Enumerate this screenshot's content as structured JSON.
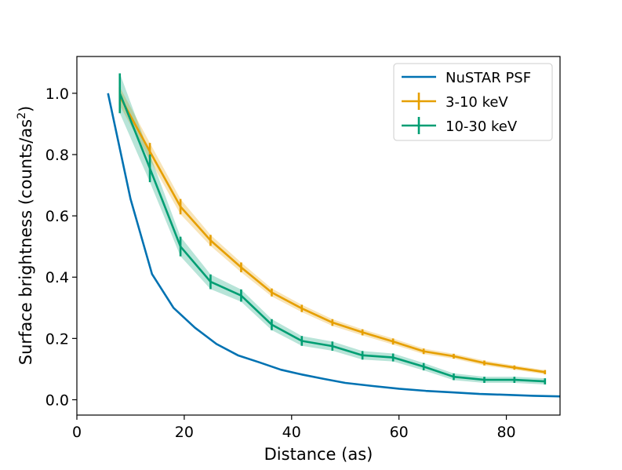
{
  "chart_data": {
    "type": "line",
    "xlabel": "Distance (as)",
    "ylabel_main": "Surface brightness (counts/as",
    "ylabel_sup": "2",
    "ylabel_tail": ")",
    "xlim": [
      0,
      90
    ],
    "ylim": [
      -0.05,
      1.12
    ],
    "xticks": [
      0,
      20,
      40,
      60,
      80
    ],
    "xtick_labels": [
      "0",
      "20",
      "40",
      "60",
      "80"
    ],
    "yticks": [
      0.0,
      0.2,
      0.4,
      0.6,
      0.8,
      1.0
    ],
    "ytick_labels": [
      "0.0",
      "0.2",
      "0.4",
      "0.6",
      "0.8",
      "1.0"
    ],
    "legend_position": "top-right",
    "series": [
      {
        "name": "NuSTAR PSF",
        "color": "#0072b2",
        "x": [
          5.8,
          10,
          14,
          18,
          22,
          26,
          30,
          34,
          38,
          42,
          46,
          50,
          55,
          60,
          65,
          70,
          75,
          80,
          85,
          90
        ],
        "y": [
          1.0,
          0.655,
          0.41,
          0.3,
          0.235,
          0.182,
          0.145,
          0.122,
          0.098,
          0.082,
          0.068,
          0.055,
          0.045,
          0.036,
          0.029,
          0.024,
          0.019,
          0.016,
          0.013,
          0.011
        ]
      },
      {
        "name": "3-10 keV",
        "color": "#e69f00",
        "x": [
          8,
          13.6,
          19.3,
          24.9,
          30.6,
          36.3,
          41.9,
          47.6,
          53.2,
          58.9,
          64.6,
          70.2,
          75.9,
          81.5,
          87.2
        ],
        "y": [
          0.99,
          0.81,
          0.63,
          0.52,
          0.432,
          0.35,
          0.298,
          0.252,
          0.22,
          0.19,
          0.158,
          0.142,
          0.12,
          0.105,
          0.09
        ],
        "err": [
          0.03,
          0.028,
          0.025,
          0.018,
          0.016,
          0.013,
          0.012,
          0.011,
          0.01,
          0.01,
          0.009,
          0.008,
          0.008,
          0.007,
          0.007
        ]
      },
      {
        "name": "10-30 keV",
        "color": "#009e73",
        "x": [
          8,
          13.6,
          19.3,
          24.9,
          30.6,
          36.3,
          41.9,
          47.6,
          53.2,
          58.9,
          64.6,
          70.2,
          75.9,
          81.5,
          87.2
        ],
        "y": [
          1.0,
          0.755,
          0.5,
          0.385,
          0.34,
          0.245,
          0.192,
          0.175,
          0.145,
          0.138,
          0.108,
          0.075,
          0.065,
          0.065,
          0.06
        ],
        "err": [
          0.065,
          0.045,
          0.032,
          0.024,
          0.02,
          0.018,
          0.016,
          0.015,
          0.014,
          0.013,
          0.012,
          0.011,
          0.01,
          0.01,
          0.01
        ]
      }
    ]
  }
}
